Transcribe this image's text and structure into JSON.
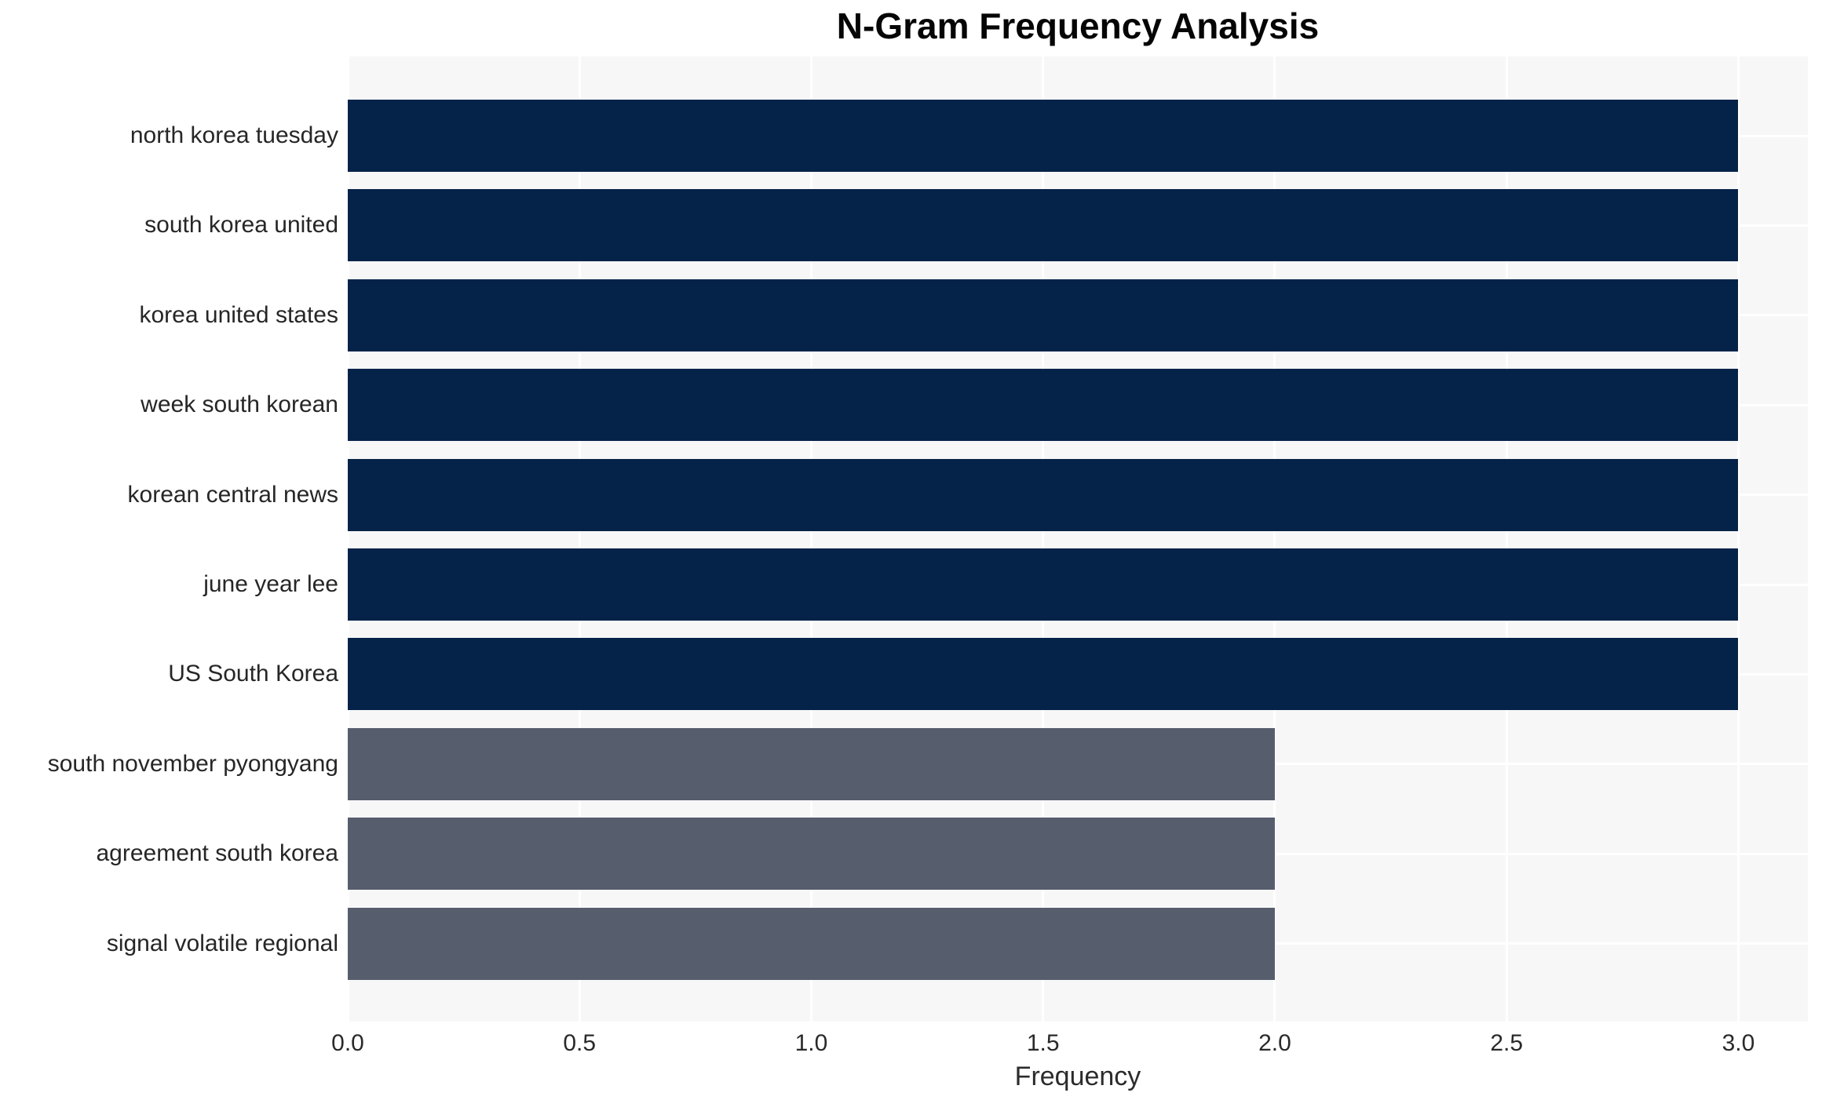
{
  "chart_data": {
    "type": "bar",
    "orientation": "horizontal",
    "title": "N-Gram Frequency Analysis",
    "xlabel": "Frequency",
    "ylabel": "",
    "categories": [
      "north korea tuesday",
      "south korea united",
      "korea united states",
      "week south korean",
      "korean central news",
      "june year lee",
      "US South Korea",
      "south november pyongyang",
      "agreement south korea",
      "signal volatile regional"
    ],
    "values": [
      3,
      3,
      3,
      3,
      3,
      3,
      3,
      2,
      2,
      2
    ],
    "bar_colors": [
      "#052349",
      "#052349",
      "#052349",
      "#052349",
      "#052349",
      "#052349",
      "#052349",
      "#565d6d",
      "#565d6d",
      "#565d6d"
    ],
    "palette": {
      "freq_3": "#052349",
      "freq_2": "#565d6d"
    },
    "x_ticks": [
      0.0,
      0.5,
      1.0,
      1.5,
      2.0,
      2.5,
      3.0
    ],
    "x_tick_labels": [
      "0.0",
      "0.5",
      "1.0",
      "1.5",
      "2.0",
      "2.5",
      "3.0"
    ],
    "xlim": [
      0,
      3.15
    ],
    "grid": true,
    "grid_color": "#ffffff",
    "plot_background": "#f7f7f8",
    "figure_background": "#ffffff",
    "legend": "none"
  }
}
